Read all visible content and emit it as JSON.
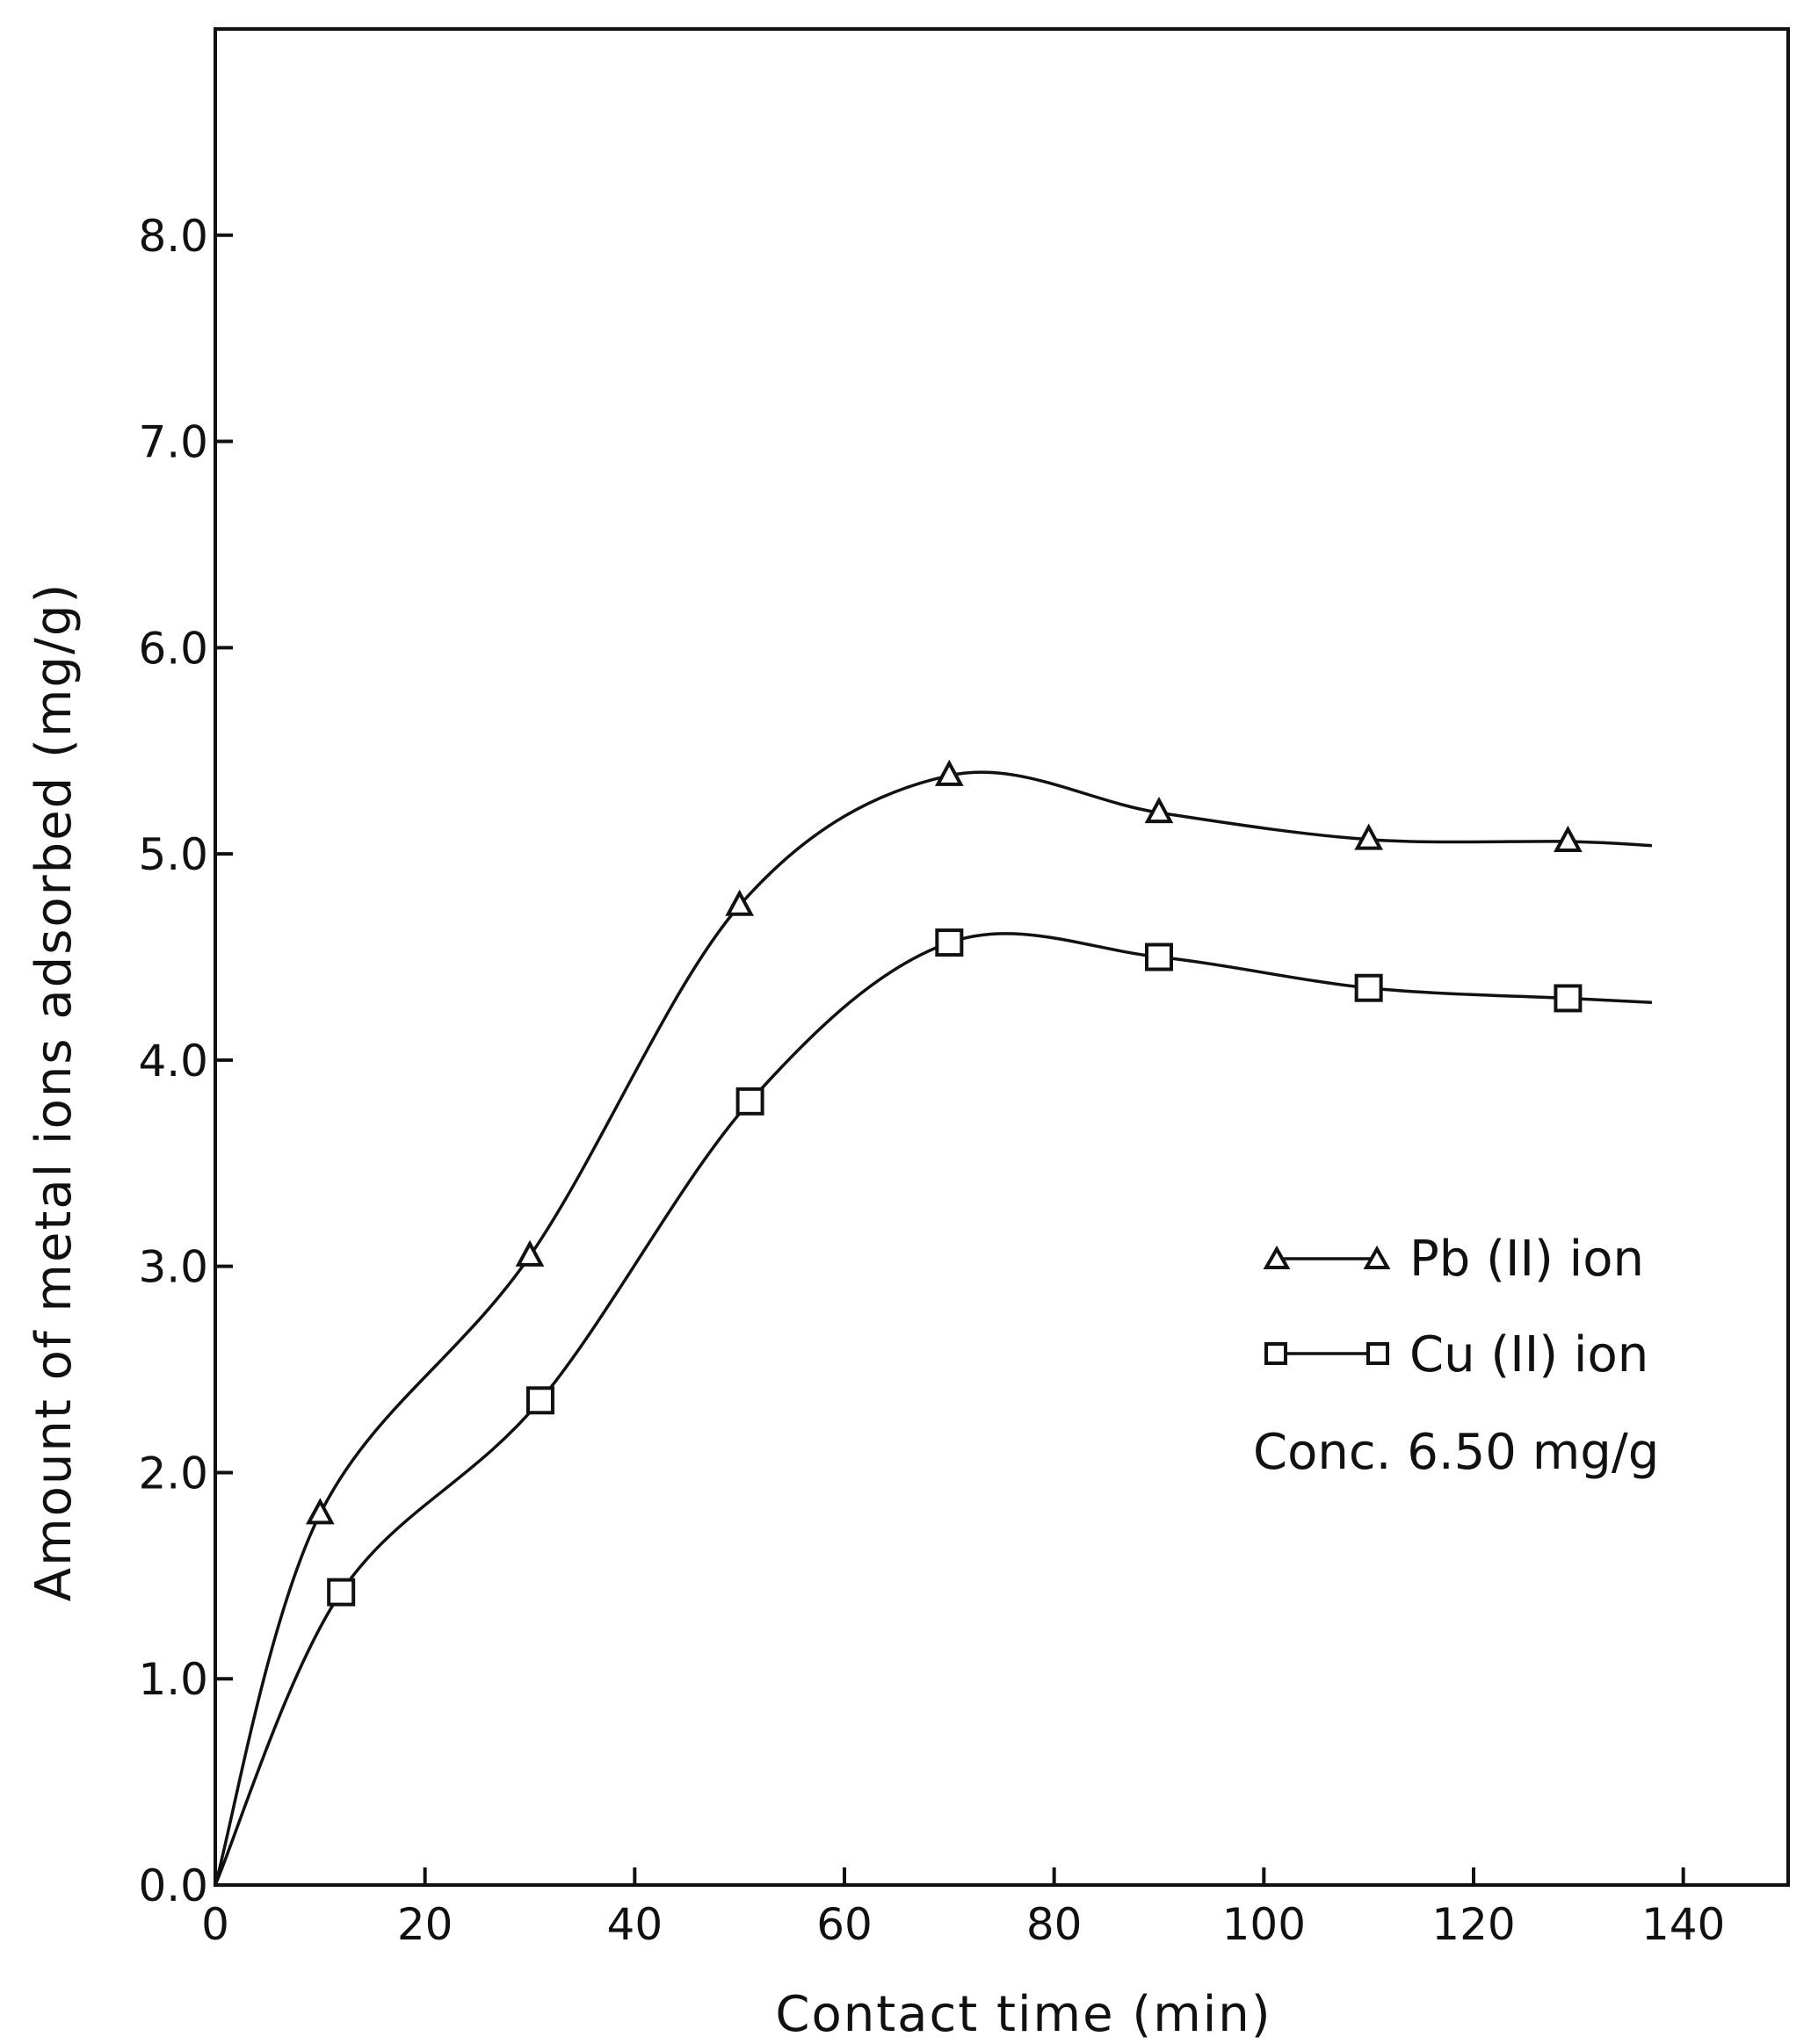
{
  "chart_data": {
    "type": "line",
    "title": "",
    "xlabel": "Contact  time (min)",
    "ylabel": "Amount  of  metal  ions  adsorbed  (mg/g)",
    "xlim": [
      0,
      150
    ],
    "ylim": [
      0,
      9
    ],
    "grid": false,
    "x_ticks": [
      0,
      20,
      40,
      60,
      80,
      100,
      120,
      140
    ],
    "x_tick_labels": [
      "0",
      "20",
      "40",
      "60",
      "80",
      "100",
      "120",
      "140"
    ],
    "y_ticks": [
      0,
      1,
      2,
      3,
      4,
      5,
      6,
      7,
      8
    ],
    "y_tick_labels": [
      "0.0",
      "1.0",
      "2.0",
      "3.0",
      "4.0",
      "5.0",
      "6.0",
      "7.0",
      "8.0"
    ],
    "legend_position": "right",
    "annotation": "Conc. 6.50 mg/g",
    "series": [
      {
        "name": "Pb (II) ion",
        "marker": "triangle",
        "x": [
          0,
          10,
          30,
          50,
          70,
          90,
          110,
          129
        ],
        "values": [
          0.0,
          1.8,
          3.05,
          4.75,
          5.38,
          5.2,
          5.07,
          5.06
        ],
        "curve_end_x": 137,
        "curve_end_y": 5.04
      },
      {
        "name": "Cu (II) ion",
        "marker": "square",
        "x": [
          0,
          12,
          31,
          51,
          70,
          90,
          110,
          129
        ],
        "values": [
          0.0,
          1.42,
          2.35,
          3.8,
          4.57,
          4.5,
          4.35,
          4.3
        ],
        "curve_end_x": 137,
        "curve_end_y": 4.28
      }
    ]
  }
}
